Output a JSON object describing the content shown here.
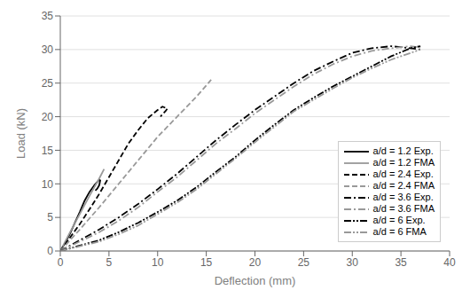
{
  "chart_data": {
    "type": "line",
    "xlabel": "Deflection (mm)",
    "ylabel": "Load (kN)",
    "xlim": [
      0,
      40
    ],
    "ylim": [
      0,
      35
    ],
    "xticks": [
      0,
      5,
      10,
      15,
      20,
      25,
      30,
      35,
      40
    ],
    "yticks": [
      0,
      5,
      10,
      15,
      20,
      25,
      30,
      35
    ],
    "grid": true,
    "legend": "lower right",
    "series": [
      {
        "name": "a/d = 1.2 Exp.",
        "color": "#000000",
        "line_style": "solid",
        "x": [
          0,
          0.5,
          1.0,
          1.5,
          2.0,
          2.5,
          3.0,
          3.5,
          3.8,
          4.0,
          4.1,
          4.0,
          3.8,
          3.6
        ],
        "values": [
          0,
          1.2,
          2.6,
          4.2,
          5.8,
          7.5,
          8.8,
          9.8,
          10.3,
          10.6,
          10.5,
          9.8,
          9.3,
          9.0
        ]
      },
      {
        "name": "a/d = 1.2 FMA",
        "color": "#999999",
        "line_style": "solid",
        "x": [
          0,
          1.0,
          2.0,
          3.0,
          4.0,
          4.5
        ],
        "values": [
          0,
          2.8,
          5.5,
          8.2,
          10.8,
          12.2
        ]
      },
      {
        "name": "a/d = 2.4 Exp.",
        "color": "#000000",
        "line_style": "dashed",
        "x": [
          0,
          1,
          2,
          3,
          4,
          5,
          6,
          7,
          8,
          9,
          10,
          10.5,
          11.0,
          10.8,
          10.5,
          10.3
        ],
        "values": [
          0,
          2.0,
          4.0,
          6.2,
          8.5,
          11.0,
          13.5,
          16.0,
          18.0,
          19.8,
          21.0,
          21.5,
          21.2,
          20.8,
          20.4,
          20.0
        ]
      },
      {
        "name": "a/d = 2.4 FMA",
        "color": "#999999",
        "line_style": "dashed",
        "x": [
          0,
          2,
          4,
          6,
          8,
          10,
          12,
          14,
          15.5
        ],
        "values": [
          0,
          3.2,
          6.5,
          10.0,
          13.5,
          17.0,
          20.0,
          23.0,
          25.5
        ]
      },
      {
        "name": "a/d = 3.6 Exp.",
        "color": "#000000",
        "line_style": "dashdot",
        "x": [
          0,
          2,
          4,
          6,
          8,
          10,
          12,
          14,
          16,
          18,
          20,
          22,
          24,
          26,
          28,
          30,
          32,
          34,
          36,
          37
        ],
        "values": [
          0,
          1.6,
          3.2,
          5.0,
          7.0,
          9.2,
          11.5,
          14.0,
          16.5,
          18.8,
          21.0,
          23.0,
          25.0,
          26.8,
          28.2,
          29.5,
          30.2,
          30.5,
          30.2,
          30.0
        ]
      },
      {
        "name": "a/d = 3.6 FMA",
        "color": "#999999",
        "line_style": "dashdot",
        "x": [
          0,
          2,
          4,
          6,
          8,
          10,
          12,
          14,
          16,
          18,
          20,
          22,
          24,
          26,
          28,
          30,
          32,
          34,
          36,
          37
        ],
        "values": [
          0,
          1.4,
          2.8,
          4.5,
          6.5,
          8.8,
          11.0,
          13.5,
          16.0,
          18.2,
          20.5,
          22.5,
          24.5,
          26.3,
          27.8,
          29.0,
          29.8,
          30.2,
          30.5,
          30.3
        ]
      },
      {
        "name": "a/d = 6 Exp.",
        "color": "#000000",
        "line_style": "dashdotdot",
        "x": [
          0,
          2,
          4,
          6,
          8,
          10,
          12,
          14,
          16,
          18,
          20,
          22,
          24,
          26,
          28,
          30,
          32,
          34,
          36,
          37
        ],
        "values": [
          0,
          0.8,
          1.6,
          2.8,
          4.2,
          5.8,
          7.5,
          9.5,
          11.8,
          14.0,
          16.5,
          18.8,
          21.0,
          22.8,
          24.5,
          26.0,
          27.5,
          29.0,
          30.2,
          30.5
        ]
      },
      {
        "name": "a/d = 6 FMA",
        "color": "#999999",
        "line_style": "dashdotdot",
        "x": [
          0,
          2,
          4,
          6,
          8,
          10,
          12,
          14,
          16,
          18,
          20,
          22,
          24,
          26,
          28,
          30,
          32,
          34,
          36,
          37
        ],
        "values": [
          0,
          0.7,
          1.4,
          2.5,
          3.8,
          5.5,
          7.2,
          9.2,
          11.5,
          13.8,
          16.2,
          18.5,
          20.8,
          22.5,
          24.2,
          25.8,
          27.2,
          28.5,
          29.5,
          30.0
        ]
      }
    ]
  }
}
